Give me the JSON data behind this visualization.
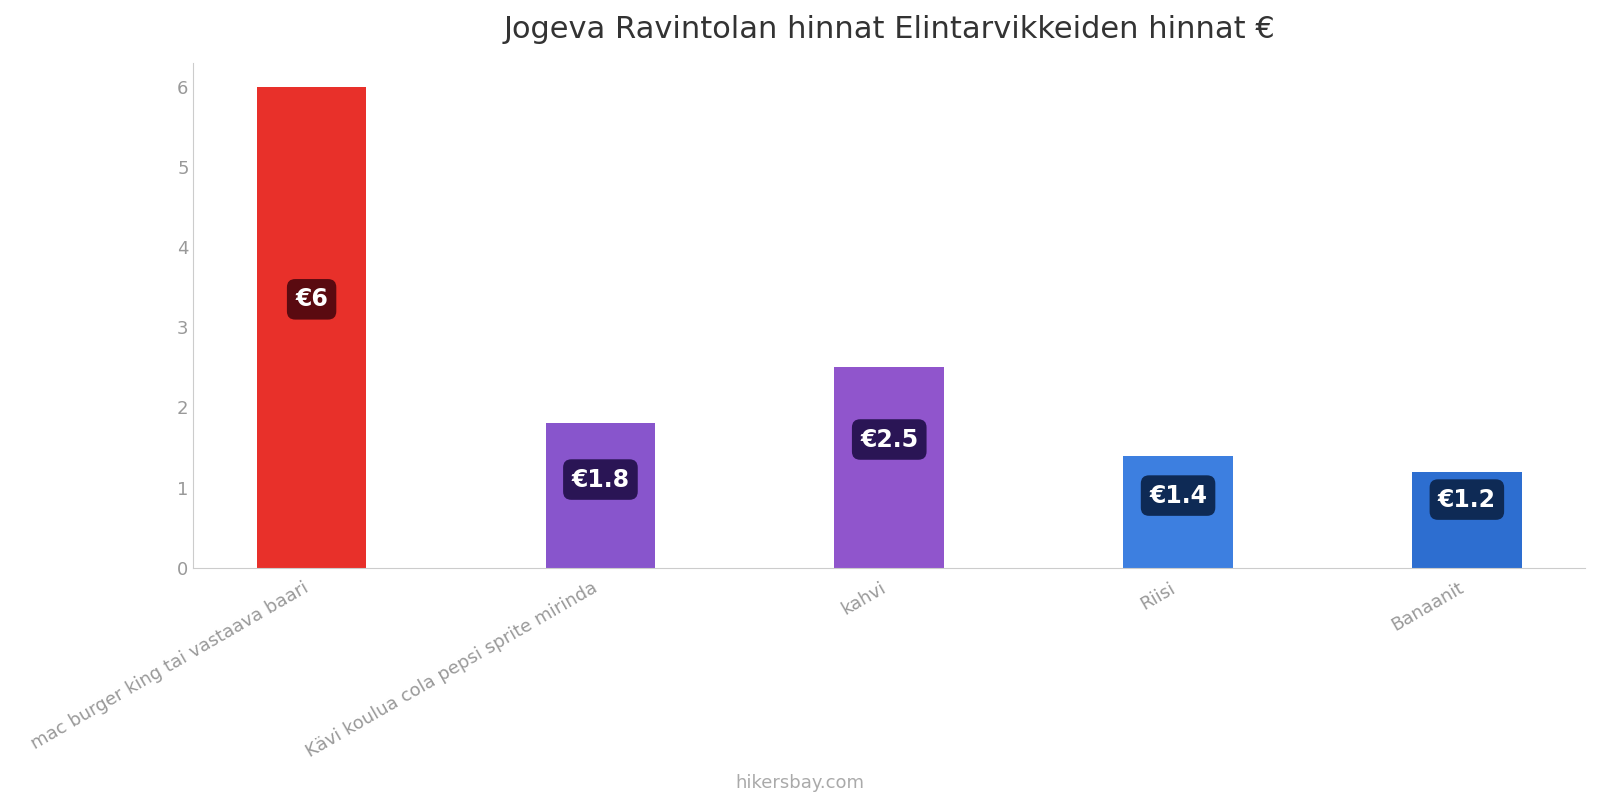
{
  "title": "Jogeva Ravintolan hinnat Elintarvikkeiden hinnat €",
  "categories": [
    "mac burger king tai vastaava baari",
    "Kävi koulua cola pepsi sprite mirinda",
    "kahvi",
    "Riisi",
    "Banaanit"
  ],
  "values": [
    6.0,
    1.8,
    2.5,
    1.4,
    1.2
  ],
  "bar_colors": [
    "#e8302a",
    "#8855cc",
    "#9055cc",
    "#3d7fe0",
    "#2d6ed0"
  ],
  "label_bg_colors": [
    "#5a0a10",
    "#2a1555",
    "#2a1555",
    "#0e2a55",
    "#0e2a55"
  ],
  "labels": [
    "€6",
    "€1.8",
    "€2.5",
    "€1.4",
    "€1.2"
  ],
  "label_y_positions": [
    3.35,
    1.1,
    1.6,
    0.9,
    0.85
  ],
  "ylim": [
    0,
    6.3
  ],
  "yticks": [
    0,
    1,
    2,
    3,
    4,
    5,
    6
  ],
  "footer": "hikersbay.com",
  "title_fontsize": 22,
  "tick_fontsize": 13,
  "label_fontsize": 17,
  "footer_fontsize": 13,
  "bar_width": 0.38,
  "background_color": "#ffffff",
  "xtick_color": "#999999",
  "ytick_color": "#999999",
  "spine_color": "#cccccc"
}
